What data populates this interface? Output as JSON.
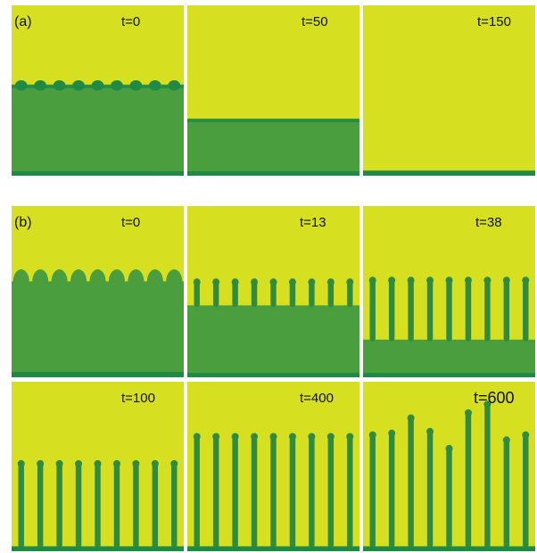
{
  "figure": {
    "row_a": {
      "label": "(a)",
      "panels": [
        {
          "time": "t=0",
          "kind": "front",
          "front_level": 0.47,
          "finger_count": 9,
          "bump_height": 0.03
        },
        {
          "time": "t=50",
          "kind": "front",
          "front_level": 0.67,
          "finger_count": 0,
          "bump_height": 0
        },
        {
          "time": "t=150",
          "kind": "bottom",
          "front_level": 0.97,
          "finger_count": 0,
          "bump_height": 0
        }
      ]
    },
    "row_b": {
      "label": "(b)",
      "panels": [
        {
          "time": "t=0",
          "kind": "bumps",
          "front_level": 0.44,
          "finger_count": 9,
          "bump_height": 0.07
        },
        {
          "time": "t=13",
          "kind": "fingers",
          "front_level": 0.58,
          "finger_count": 9,
          "finger_tips": [
            0.43,
            0.43,
            0.43,
            0.43,
            0.43,
            0.43,
            0.43,
            0.43,
            0.43
          ]
        },
        {
          "time": "t=38",
          "kind": "fingers",
          "front_level": 0.78,
          "finger_count": 9,
          "finger_tips": [
            0.42,
            0.42,
            0.42,
            0.42,
            0.42,
            0.42,
            0.42,
            0.42,
            0.42
          ]
        }
      ]
    },
    "row_c": {
      "panels": [
        {
          "time": "t=100",
          "kind": "fingers",
          "front_level": 0.97,
          "finger_count": 9,
          "finger_tips": [
            0.47,
            0.47,
            0.47,
            0.47,
            0.47,
            0.47,
            0.47,
            0.47,
            0.47
          ]
        },
        {
          "time": "t=400",
          "kind": "fingers",
          "front_level": 0.97,
          "finger_count": 9,
          "finger_tips": [
            0.31,
            0.31,
            0.31,
            0.31,
            0.31,
            0.31,
            0.31,
            0.31,
            0.31
          ]
        },
        {
          "time": "t=600",
          "kind": "fingers",
          "front_level": 0.97,
          "finger_count": 9,
          "finger_tips": [
            0.3,
            0.29,
            0.2,
            0.28,
            0.38,
            0.17,
            0.12,
            0.33,
            0.3
          ]
        }
      ]
    },
    "colors": {
      "background": "#d6df20",
      "dark": "#4a9e3e",
      "finger": "#2f8c3f",
      "edge": "#1e8a45"
    }
  }
}
